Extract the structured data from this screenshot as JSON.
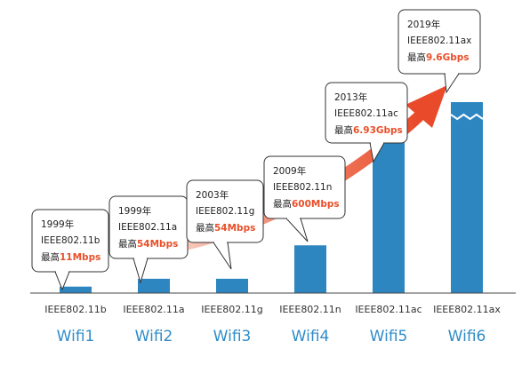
{
  "chart_data": {
    "type": "bar",
    "categories": [
      "Wifi1",
      "Wifi2",
      "Wifi3",
      "Wifi4",
      "Wifi5",
      "Wifi6"
    ],
    "standards": [
      "IEEE802.11b",
      "IEEE802.11a",
      "IEEE802.11g",
      "IEEE802.11n",
      "IEEE802.11ac",
      "IEEE802.11ax"
    ],
    "values": [
      11,
      54,
      54,
      600,
      6930,
      9600
    ],
    "value_unit": "Mbps",
    "value_labels": [
      "11Mbps",
      "54Mbps",
      "54Mbps",
      "600Mbps",
      "6.93Gbps",
      "9.6Gbps"
    ],
    "years": [
      "1999年",
      "1999年",
      "2003年",
      "2009年",
      "2013年",
      "2019年"
    ],
    "max_prefix": "最高",
    "last_bar_truncated": true,
    "title": "",
    "xlabel": "",
    "ylabel": "",
    "grid": false,
    "colors": {
      "bar": "#2e86c1",
      "category": "#2f8cc9",
      "speed": "#e8502a",
      "arrow": "#e94a2a",
      "baseline": "#444444"
    }
  }
}
